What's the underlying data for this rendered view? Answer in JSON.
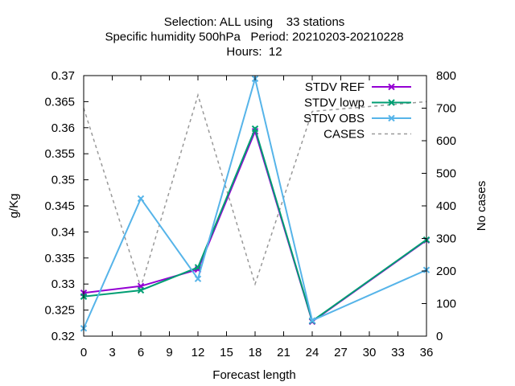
{
  "chart_data": {
    "type": "line",
    "title_lines": [
      "Selection: ALL using    33 stations",
      "Specific humidity 500hPa   Period: 20210203-20210228",
      "Hours:  12"
    ],
    "xlabel": "Forecast length",
    "ylabel": "g/Kg",
    "y2label": "No cases",
    "x_ticks": [
      0,
      3,
      6,
      9,
      12,
      15,
      18,
      21,
      24,
      27,
      30,
      33,
      36
    ],
    "xlim": [
      0,
      36
    ],
    "y_ticks": [
      "0.32",
      "0.325",
      "0.33",
      "0.335",
      "0.34",
      "0.345",
      "0.35",
      "0.355",
      "0.36",
      "0.365",
      "0.37"
    ],
    "ylim": [
      0.32,
      0.37
    ],
    "y2_ticks": [
      0,
      100,
      200,
      300,
      400,
      500,
      600,
      700,
      800
    ],
    "y2lim": [
      0,
      800
    ],
    "legend_position": "top-right",
    "grid": false,
    "series": [
      {
        "name": "STDV REF",
        "axis": "y",
        "color": "#9400d3",
        "dash": "",
        "marker": "x",
        "x": [
          0,
          6,
          12,
          18,
          24,
          36
        ],
        "y": [
          0.3283,
          0.3296,
          0.3328,
          0.3593,
          0.3228,
          0.3384
        ]
      },
      {
        "name": "STDV lowp",
        "axis": "y",
        "color": "#009e73",
        "dash": "",
        "marker": "x",
        "x": [
          0,
          6,
          12,
          18,
          24,
          36
        ],
        "y": [
          0.3276,
          0.3288,
          0.3332,
          0.3598,
          0.3229,
          0.3385
        ]
      },
      {
        "name": "STDV OBS",
        "axis": "y",
        "color": "#56b4e9",
        "dash": "",
        "marker": "x",
        "x": [
          0,
          6,
          12,
          18,
          24,
          36
        ],
        "y": [
          0.3215,
          0.3464,
          0.331,
          0.3694,
          0.323,
          0.3327
        ]
      },
      {
        "name": "CASES",
        "axis": "y2",
        "color": "#999999",
        "dash": "4,4",
        "marker": "",
        "x": [
          0,
          6,
          12,
          18,
          24,
          36
        ],
        "y": [
          700,
          150,
          740,
          160,
          690,
          720
        ]
      }
    ]
  }
}
